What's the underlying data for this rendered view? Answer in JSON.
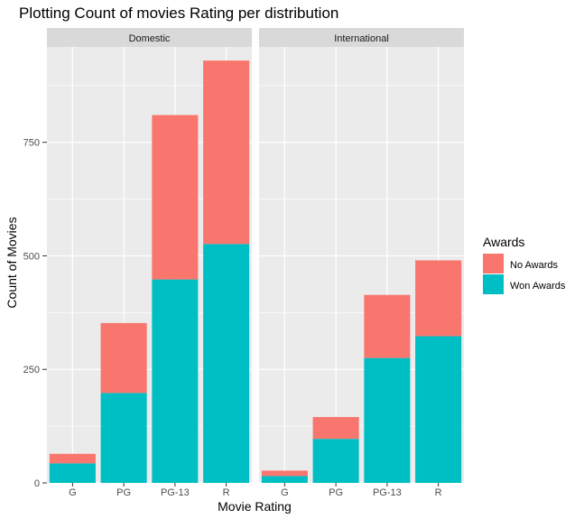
{
  "chart_data": {
    "type": "bar",
    "stacked": true,
    "title": "Plotting Count of movies Rating per distribution",
    "xlabel": "Movie Rating",
    "ylabel": "Count of Movies",
    "categories": [
      "G",
      "PG",
      "PG-13",
      "R"
    ],
    "ylim": [
      0,
      960
    ],
    "yticks": [
      0,
      250,
      500,
      750
    ],
    "grid": true,
    "legend": {
      "title": "Awards",
      "position": "right",
      "entries": [
        "No Awards",
        "Won Awards"
      ]
    },
    "colors": {
      "No Awards": "#F8766D",
      "Won Awards": "#00BFC4"
    },
    "facets": [
      {
        "name": "Domestic",
        "series": [
          {
            "name": "Won Awards",
            "values": [
              43,
              198,
              448,
              526
            ]
          },
          {
            "name": "No Awards",
            "values": [
              21,
              154,
              362,
              404
            ]
          }
        ]
      },
      {
        "name": "International",
        "series": [
          {
            "name": "Won Awards",
            "values": [
              15,
              97,
              275,
              323
            ]
          },
          {
            "name": "No Awards",
            "values": [
              12,
              48,
              139,
              167
            ]
          }
        ]
      }
    ]
  }
}
